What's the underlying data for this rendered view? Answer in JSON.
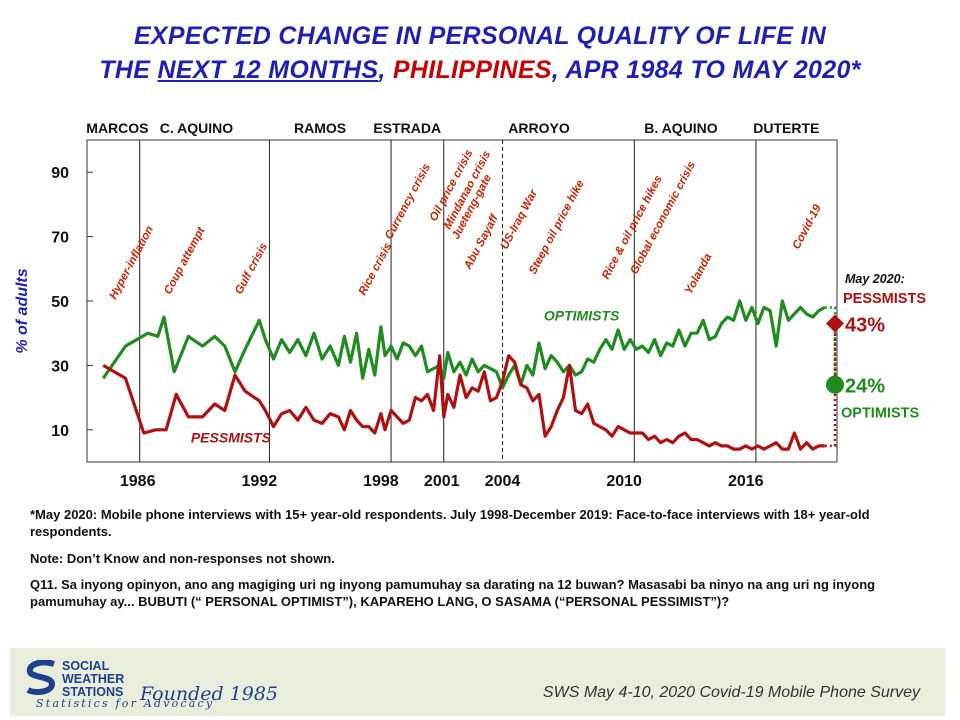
{
  "title": {
    "line1": "EXPECTED CHANGE IN PERSONAL QUALITY OF LIFE IN",
    "line2_a": "THE ",
    "line2_b": "NEXT 12 MONTHS",
    "line2_c": ", ",
    "line2_d": "PHILIPPINES",
    "line2_e": ", APR 1984 TO MAY 2020*"
  },
  "notes": {
    "n1": "*May 2020: Mobile phone interviews with 15+ year-old respondents. July 1998-December 2019: Face-to-face interviews with 18+ year-old respondents.",
    "n2": "Note: Don’t Know and non-responses not shown.",
    "n3": "Q11. Sa inyong opinyon, ano ang magiging uri ng inyong pamumuhay sa darating na 12 buwan? Masasabi ba ninyo na ang uri ng inyong pamumuhay ay... BUBUTI (“ PERSONAL OPTIMIST”), KAPAREHO LANG, O SASAMA (“PERSONAL PESSIMIST”)?"
  },
  "footer": {
    "org_line1": "SOCIAL",
    "org_line2": "WEATHER",
    "org_line3": "STATIONS",
    "founded": "Founded 1985",
    "tagline": "Statistics for Advocacy",
    "survey": "SWS May 4-10, 2020 Covid-19 Mobile Phone Survey"
  },
  "chart_data": {
    "type": "line",
    "ylabel": "% of adults",
    "xlim": [
      1983.5,
      2020.5
    ],
    "ylim": [
      0,
      100
    ],
    "yticks": [
      10,
      30,
      50,
      70,
      90
    ],
    "xticks": [
      1986,
      1992,
      1998,
      2001,
      2004,
      2010,
      2016
    ],
    "colors": {
      "optimists": "#1e8c1e",
      "pessimists": "#b01010",
      "admin_text": "#111111",
      "event_text": "#cc2200"
    },
    "administrations": [
      {
        "name": "MARCOS",
        "start": 1984.0
      },
      {
        "name": "C. AQUINO",
        "start": 1986.1
      },
      {
        "name": "RAMOS",
        "start": 1992.5
      },
      {
        "name": "ESTRADA",
        "start": 1998.5
      },
      {
        "name": "ARROYO",
        "start": 2001.1
      },
      {
        "name": "B. AQUINO",
        "start": 2010.5
      },
      {
        "name": "DUTERTE",
        "start": 2016.5
      }
    ],
    "admin_label_x": [
      1985.0,
      1988.9,
      1995.0,
      1999.3,
      2005.8,
      2012.8,
      2018.0
    ],
    "boundaries": [
      1986.1,
      1992.5,
      1998.5,
      2001.1,
      2010.5,
      2016.5
    ],
    "dashed_boundary": 2004.0,
    "events": [
      {
        "label": "Hyper-inflation",
        "x": 1984.9
      },
      {
        "label": "Coup attempt",
        "x": 1987.6
      },
      {
        "label": "Gulf crisis",
        "x": 1991.1
      },
      {
        "label": "Rice crisis",
        "x": 1997.2
      },
      {
        "label": "Currency crisis",
        "x": 1998.5
      },
      {
        "label": "Oil price crisis",
        "x": 2000.7
      },
      {
        "label": "Mindanao crisis",
        "x": 2001.4
      },
      {
        "label": "Jueteng-gate",
        "x": 2001.8
      },
      {
        "label": "Abu Sayaff",
        "x": 2002.4
      },
      {
        "label": "US-Iraq War",
        "x": 2004.2
      },
      {
        "label": "Steep oil price hike",
        "x": 2005.6
      },
      {
        "label": "Rice & oil price hikes",
        "x": 2009.2
      },
      {
        "label": "Global economic crisis",
        "x": 2010.6
      },
      {
        "label": "Yolanda",
        "x": 2013.3
      },
      {
        "label": "Covid-19",
        "x": 2018.6
      }
    ],
    "series": [
      {
        "name": "OPTIMISTS",
        "x": [
          1984.3,
          1985.4,
          1986.5,
          1987.0,
          1987.3,
          1987.8,
          1988.5,
          1989.2,
          1989.8,
          1990.3,
          1990.8,
          1991.3,
          1992.0,
          1992.3,
          1992.7,
          1993.1,
          1993.5,
          1993.9,
          1994.3,
          1994.7,
          1995.1,
          1995.5,
          1995.9,
          1996.2,
          1996.5,
          1996.8,
          1997.1,
          1997.4,
          1997.7,
          1998.0,
          1998.2,
          1998.5,
          1998.8,
          1999.1,
          1999.4,
          1999.7,
          2000.0,
          2000.3,
          2000.6,
          2000.9,
          2001.1,
          2001.3,
          2001.6,
          2001.9,
          2002.2,
          2002.5,
          2002.8,
          2003.1,
          2003.4,
          2003.7,
          2004.0,
          2004.3,
          2004.6,
          2004.9,
          2005.2,
          2005.5,
          2005.8,
          2006.1,
          2006.4,
          2006.7,
          2007.0,
          2007.3,
          2007.6,
          2007.9,
          2008.2,
          2008.5,
          2008.8,
          2009.1,
          2009.4,
          2009.7,
          2010.0,
          2010.3,
          2010.6,
          2010.9,
          2011.2,
          2011.5,
          2011.8,
          2012.1,
          2012.4,
          2012.7,
          2013.0,
          2013.3,
          2013.6,
          2013.9,
          2014.2,
          2014.5,
          2014.8,
          2015.1,
          2015.4,
          2015.7,
          2016.0,
          2016.3,
          2016.6,
          2016.9,
          2017.2,
          2017.5,
          2017.8,
          2018.1,
          2018.4,
          2018.7,
          2019.0,
          2019.3,
          2019.6,
          2019.9
        ],
        "values": [
          26,
          36,
          40,
          39,
          45,
          28,
          39,
          36,
          39,
          36,
          28,
          35,
          44,
          38,
          32,
          38,
          34,
          38,
          33,
          40,
          32,
          36,
          30,
          39,
          31,
          40,
          26,
          35,
          27,
          42,
          33,
          36,
          32,
          37,
          36,
          33,
          36,
          28,
          29,
          30,
          26,
          34,
          28,
          31,
          27,
          32,
          28,
          30,
          29,
          28,
          23,
          27,
          30,
          24,
          30,
          27,
          37,
          29,
          33,
          31,
          28,
          30,
          27,
          28,
          32,
          31,
          35,
          38,
          35,
          41,
          35,
          38,
          35,
          36,
          34,
          38,
          33,
          37,
          36,
          41,
          36,
          40,
          40,
          44,
          38,
          39,
          43,
          45,
          44,
          50,
          44,
          48,
          43,
          48,
          47,
          36,
          50,
          44,
          46,
          48,
          46,
          45,
          47,
          48
        ]
      },
      {
        "name": "PESSMISTS",
        "x": [
          1984.3,
          1985.4,
          1986.3,
          1986.9,
          1987.4,
          1987.9,
          1988.5,
          1989.2,
          1989.8,
          1990.3,
          1990.8,
          1991.3,
          1992.0,
          1992.3,
          1992.7,
          1993.1,
          1993.5,
          1993.9,
          1994.3,
          1994.7,
          1995.1,
          1995.5,
          1995.9,
          1996.2,
          1996.5,
          1996.8,
          1997.1,
          1997.4,
          1997.7,
          1998.0,
          1998.2,
          1998.5,
          1998.8,
          1999.1,
          1999.4,
          1999.7,
          2000.0,
          2000.3,
          2000.6,
          2000.9,
          2001.1,
          2001.3,
          2001.6,
          2001.9,
          2002.2,
          2002.5,
          2002.8,
          2003.1,
          2003.4,
          2003.7,
          2004.0,
          2004.3,
          2004.6,
          2004.9,
          2005.2,
          2005.5,
          2005.8,
          2006.1,
          2006.4,
          2006.7,
          2007.0,
          2007.3,
          2007.6,
          2007.9,
          2008.2,
          2008.5,
          2008.8,
          2009.1,
          2009.4,
          2009.7,
          2010.0,
          2010.3,
          2010.6,
          2010.9,
          2011.2,
          2011.5,
          2011.8,
          2012.1,
          2012.4,
          2012.7,
          2013.0,
          2013.3,
          2013.6,
          2013.9,
          2014.2,
          2014.5,
          2014.8,
          2015.1,
          2015.4,
          2015.7,
          2016.0,
          2016.3,
          2016.6,
          2016.9,
          2017.2,
          2017.5,
          2017.8,
          2018.1,
          2018.4,
          2018.7,
          2019.0,
          2019.3,
          2019.6,
          2019.9
        ],
        "values": [
          30,
          26,
          9,
          10,
          10,
          21,
          14,
          14,
          18,
          16,
          27,
          22,
          19,
          16,
          11,
          15,
          16,
          13,
          17,
          13,
          12,
          15,
          14,
          10,
          16,
          13,
          11,
          11,
          9,
          15,
          10,
          16,
          14,
          12,
          13,
          20,
          19,
          21,
          16,
          33,
          14,
          21,
          17,
          27,
          20,
          23,
          22,
          28,
          19,
          20,
          25,
          33,
          31,
          24,
          23,
          19,
          21,
          8,
          11,
          16,
          20,
          30,
          16,
          15,
          18,
          12,
          11,
          10,
          8,
          11,
          10,
          9,
          9,
          9,
          7,
          8,
          6,
          7,
          6,
          8,
          9,
          7,
          7,
          6,
          5,
          6,
          5,
          5,
          4,
          4,
          5,
          4,
          5,
          4,
          5,
          6,
          4,
          4,
          9,
          4,
          6,
          4,
          5,
          5
        ]
      }
    ],
    "may2020": {
      "label_top": "May 2020:",
      "pess_label": "PESSMISTS",
      "pess_value": 43,
      "pess_text": "43%",
      "opt_value": 24,
      "opt_text": "24%",
      "opt_label": "OPTIMISTS",
      "x": 2020.4
    },
    "inline_labels": {
      "optimists": "OPTIMISTS",
      "optimists_x": 2007.9,
      "optimists_y": 44,
      "pessimists": "PESSMISTS",
      "pessimists_x": 1990.6,
      "pessimists_y": 6
    }
  }
}
